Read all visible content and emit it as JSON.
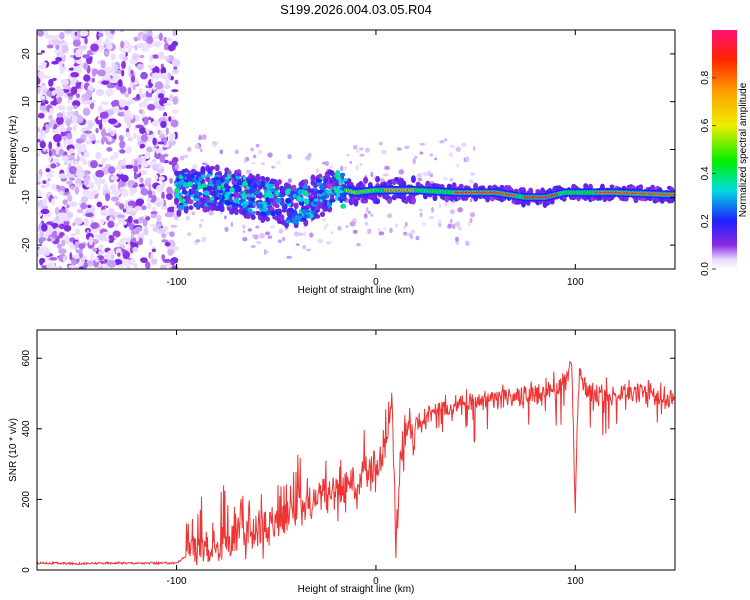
{
  "title": "S199.2026.004.03.05.R04",
  "chart_data": [
    {
      "type": "heatmap",
      "name": "spectrogram",
      "xlabel": "Height of straight line (km)",
      "ylabel": "Frequency (Hz)",
      "xlim": [
        -170,
        150
      ],
      "ylim": [
        -25,
        25
      ],
      "xticks": [
        -100,
        0,
        100
      ],
      "yticks": [
        -20,
        -10,
        0,
        10,
        20
      ],
      "colorbar": {
        "label": "Normalized spectral amplitude",
        "range": [
          0,
          1
        ],
        "ticks": [
          0.0,
          0.2,
          0.4,
          0.6,
          0.8
        ],
        "tick_labels": [
          "0.0",
          "0.2",
          "0.4",
          "0.6",
          "0.8"
        ]
      },
      "noise_region_x": [
        -170,
        -100
      ],
      "signal_track": {
        "x": [
          -100,
          -90,
          -80,
          -70,
          -60,
          -50,
          -40,
          -30,
          -20,
          -10,
          0,
          10,
          20,
          40,
          60,
          75,
          85,
          95,
          105,
          120,
          150
        ],
        "freq": [
          -9,
          -8.5,
          -8,
          -9,
          -10,
          -11,
          -12,
          -10,
          -8,
          -9,
          -8.5,
          -8.5,
          -8.5,
          -9,
          -9,
          -10,
          -10,
          -9,
          -9,
          -9,
          -9.5
        ]
      }
    },
    {
      "type": "line",
      "name": "snr",
      "xlabel": "Height of straight line (km)",
      "ylabel": "SNR (10 * v/v)",
      "xlim": [
        -170,
        150
      ],
      "ylim": [
        0,
        680
      ],
      "xticks": [
        -100,
        0,
        100
      ],
      "yticks": [
        0,
        200,
        400,
        600
      ],
      "series": [
        {
          "name": "SNR",
          "color": "#ee3333",
          "x": [
            -170,
            -150,
            -130,
            -110,
            -100,
            -95,
            -90,
            -80,
            -70,
            -60,
            -50,
            -40,
            -30,
            -20,
            -10,
            -5,
            0,
            5,
            8,
            10,
            12,
            15,
            20,
            25,
            30,
            40,
            50,
            60,
            70,
            80,
            90,
            95,
            98,
            100,
            102,
            105,
            110,
            120,
            130,
            140,
            150
          ],
          "values": [
            20,
            18,
            20,
            19,
            20,
            40,
            60,
            70,
            90,
            110,
            140,
            160,
            190,
            220,
            250,
            280,
            300,
            340,
            500,
            40,
            300,
            370,
            410,
            440,
            450,
            470,
            480,
            480,
            490,
            500,
            510,
            540,
            600,
            210,
            560,
            520,
            500,
            500,
            500,
            490,
            480
          ]
        }
      ]
    }
  ],
  "colors": {
    "line": "#ee3333",
    "axis": "#000000",
    "background": "#ffffff"
  }
}
